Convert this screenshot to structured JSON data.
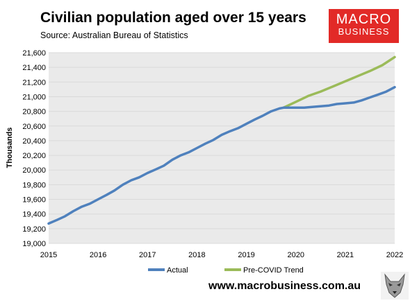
{
  "header": {
    "title": "Civilian population aged over 15 years",
    "subtitle": "Source: Australian Bureau of Statistics"
  },
  "logo": {
    "line1": "MACRO",
    "line2": "BUSINESS"
  },
  "footer": {
    "url": "www.macrobusiness.com.au"
  },
  "colors": {
    "actual": "#4f81bd",
    "trend": "#9bbb59",
    "logo_bg": "#e22a27",
    "grid": "#d9d9d9"
  },
  "icons": {
    "mascot": "wolf-icon"
  },
  "chart_data": {
    "type": "line",
    "title": "Civilian population aged over 15 years",
    "xlabel": "",
    "ylabel": "Thousands",
    "ylim": [
      19000,
      21600
    ],
    "yticks": [
      19000,
      19200,
      19400,
      19600,
      19800,
      20000,
      20200,
      20400,
      20600,
      20800,
      21000,
      21200,
      21400,
      21600
    ],
    "yticklabels": [
      "19,000",
      "19,200",
      "19,400",
      "19,600",
      "19,800",
      "20,000",
      "20,200",
      "20,400",
      "20,600",
      "20,800",
      "21,000",
      "21,200",
      "21,400",
      "21,600"
    ],
    "xlim": [
      2015,
      2022
    ],
    "xticks": [
      2015,
      2016,
      2017,
      2018,
      2019,
      2020,
      2021,
      2022
    ],
    "xticklabels": [
      "2015",
      "2016",
      "2017",
      "2018",
      "2019",
      "2020",
      "2021",
      "2022"
    ],
    "grid": "horizontal",
    "legend": "bottom",
    "series": [
      {
        "name": "Actual",
        "x": [
          2015.0,
          2015.17,
          2015.33,
          2015.5,
          2015.67,
          2015.83,
          2016.0,
          2016.17,
          2016.33,
          2016.5,
          2016.67,
          2016.83,
          2017.0,
          2017.17,
          2017.33,
          2017.5,
          2017.67,
          2017.83,
          2018.0,
          2018.17,
          2018.33,
          2018.5,
          2018.67,
          2018.83,
          2019.0,
          2019.17,
          2019.33,
          2019.5,
          2019.67,
          2019.75,
          2019.83,
          2020.0,
          2020.17,
          2020.33,
          2020.5,
          2020.67,
          2020.83,
          2021.0,
          2021.17,
          2021.33,
          2021.5,
          2021.67,
          2021.83,
          2022.0
        ],
        "values": [
          19270,
          19320,
          19370,
          19440,
          19500,
          19540,
          19600,
          19660,
          19720,
          19800,
          19860,
          19900,
          19960,
          20010,
          20060,
          20140,
          20200,
          20240,
          20300,
          20360,
          20410,
          20480,
          20530,
          20570,
          20630,
          20690,
          20740,
          20800,
          20840,
          20850,
          20850,
          20850,
          20850,
          20860,
          20870,
          20880,
          20900,
          20910,
          20920,
          20950,
          20990,
          21030,
          21070,
          21130
        ]
      },
      {
        "name": "Pre-COVID Trend",
        "x": [
          2019.75,
          2020.0,
          2020.25,
          2020.5,
          2020.75,
          2021.0,
          2021.25,
          2021.5,
          2021.75,
          2022.0
        ],
        "values": [
          20850,
          20930,
          21010,
          21070,
          21140,
          21210,
          21280,
          21350,
          21430,
          21540
        ]
      }
    ]
  }
}
